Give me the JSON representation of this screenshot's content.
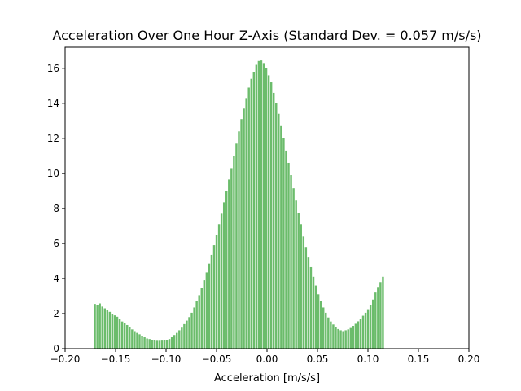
{
  "chart_data": {
    "type": "bar",
    "title": "Acceleration Over One Hour Z-Axis (Standard Dev. = 0.057 m/s/s)",
    "xlabel": "Acceleration [m/s/s]",
    "ylabel": "",
    "xlim": [
      -0.2,
      0.2
    ],
    "ylim": [
      0,
      17.2
    ],
    "xticks": [
      -0.2,
      -0.15,
      -0.1,
      -0.05,
      0.0,
      0.05,
      0.1,
      0.15,
      0.2
    ],
    "xtick_labels": [
      "−0.20",
      "−0.15",
      "−0.10",
      "−0.05",
      "0.00",
      "0.05",
      "0.10",
      "0.15",
      "0.20"
    ],
    "yticks": [
      0,
      2,
      4,
      6,
      8,
      10,
      12,
      14,
      16
    ],
    "ytick_labels": [
      "0",
      "2",
      "4",
      "6",
      "8",
      "10",
      "12",
      "14",
      "16"
    ],
    "grid": false,
    "bar_color": "#2ca02c",
    "bar_alpha": 0.7,
    "x_start": -0.1705,
    "x_step": 0.00246,
    "values": [
      2.55,
      2.5,
      2.58,
      2.4,
      2.3,
      2.2,
      2.1,
      1.98,
      1.9,
      1.82,
      1.7,
      1.55,
      1.45,
      1.35,
      1.22,
      1.1,
      1.0,
      0.9,
      0.82,
      0.72,
      0.65,
      0.58,
      0.55,
      0.5,
      0.48,
      0.45,
      0.45,
      0.46,
      0.5,
      0.5,
      0.55,
      0.65,
      0.78,
      0.9,
      1.05,
      1.2,
      1.4,
      1.6,
      1.8,
      2.05,
      2.35,
      2.7,
      3.05,
      3.45,
      3.9,
      4.35,
      4.85,
      5.35,
      5.9,
      6.5,
      7.1,
      7.7,
      8.35,
      9.0,
      9.65,
      10.3,
      11.0,
      11.7,
      12.4,
      13.1,
      13.7,
      14.3,
      14.9,
      15.4,
      15.8,
      16.2,
      16.42,
      16.45,
      16.3,
      16.0,
      15.6,
      15.2,
      14.6,
      14.0,
      13.4,
      12.7,
      12.0,
      11.3,
      10.6,
      9.9,
      9.15,
      8.45,
      7.75,
      7.1,
      6.4,
      5.8,
      5.2,
      4.65,
      4.1,
      3.6,
      3.1,
      2.7,
      2.35,
      2.05,
      1.78,
      1.55,
      1.38,
      1.25,
      1.12,
      1.05,
      1.0,
      1.05,
      1.1,
      1.18,
      1.3,
      1.42,
      1.56,
      1.72,
      1.88,
      2.05,
      2.25,
      2.5,
      2.8,
      3.2,
      3.52,
      3.8,
      4.1
    ]
  }
}
